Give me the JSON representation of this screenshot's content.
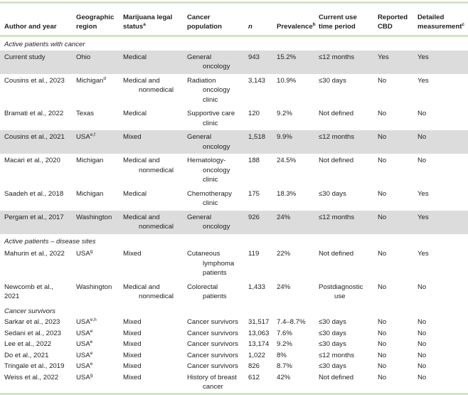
{
  "headers": [
    {
      "text": "Author and year"
    },
    {
      "text": "Geographic region"
    },
    {
      "text": "Marijuana legal status",
      "sup": "a"
    },
    {
      "text": "Cancer population"
    },
    {
      "text": "n",
      "italic": true
    },
    {
      "text": "Prevalence",
      "sup": "b"
    },
    {
      "text": "Current use time period"
    },
    {
      "text": "Reported CBD"
    },
    {
      "text": "Detailed measurement",
      "sup": "c"
    }
  ],
  "groups": [
    {
      "title": "Active patients with cancer",
      "rows": [
        {
          "shaded": true,
          "cells": [
            [
              "Current study"
            ],
            [
              "Ohio"
            ],
            [
              "Medical"
            ],
            [
              "General",
              "oncology"
            ],
            [
              "943"
            ],
            [
              "15.2%"
            ],
            [
              "≤12 months"
            ],
            [
              "Yes"
            ],
            [
              "Yes"
            ]
          ]
        },
        {
          "cells": [
            [
              "Cousins et al., 2023"
            ],
            [
              {
                "t": "Michigan",
                "sup": "d"
              }
            ],
            [
              "Medical and",
              "nonmedical"
            ],
            [
              "Radiation",
              "oncology clinic"
            ],
            [
              "3,143"
            ],
            [
              "10.9%"
            ],
            [
              "≤30 days"
            ],
            [
              "No"
            ],
            [
              "Yes"
            ]
          ]
        },
        {
          "cells": [
            [
              "Bramati et al., 2022"
            ],
            [
              "Texas"
            ],
            [
              "Medical"
            ],
            [
              "Supportive care",
              "clinic"
            ],
            [
              "120"
            ],
            [
              "9.2%"
            ],
            [
              "Not defined"
            ],
            [
              "No"
            ],
            [
              "No"
            ]
          ]
        },
        {
          "shaded": true,
          "cells": [
            [
              "Cousins et al., 2021"
            ],
            [
              {
                "t": "USA",
                "sup": "e,f"
              }
            ],
            [
              "Mixed"
            ],
            [
              "General",
              "oncology"
            ],
            [
              "1,518"
            ],
            [
              "9.9%"
            ],
            [
              "≤12 months"
            ],
            [
              "No"
            ],
            [
              "No"
            ]
          ]
        },
        {
          "cells": [
            [
              "Macari et al., 2020"
            ],
            [
              "Michigan"
            ],
            [
              "Medical and",
              "nonmedical"
            ],
            [
              "Hematology-",
              "oncology",
              "clinic"
            ],
            [
              "188"
            ],
            [
              "24.5%"
            ],
            [
              "Not defined"
            ],
            [
              "No"
            ],
            [
              "No"
            ]
          ]
        },
        {
          "cells": [
            [
              "Saadeh et al., 2018"
            ],
            [
              "Michigan"
            ],
            [
              "Medical"
            ],
            [
              "Chemotherapy",
              "clinic"
            ],
            [
              "175"
            ],
            [
              "18.3%"
            ],
            [
              "≤30 days"
            ],
            [
              "No"
            ],
            [
              "Yes"
            ]
          ]
        },
        {
          "shaded": true,
          "cells": [
            [
              "Pergam et al., 2017"
            ],
            [
              "Washington"
            ],
            [
              "Medical and",
              "nonmedical"
            ],
            [
              "General",
              "oncology"
            ],
            [
              "926"
            ],
            [
              "24%"
            ],
            [
              "≤12 months"
            ],
            [
              "No"
            ],
            [
              "Yes"
            ]
          ]
        }
      ]
    },
    {
      "title": "Active patients – disease sites",
      "rows": [
        {
          "cells": [
            [
              "Mahurin et al., 2022"
            ],
            [
              {
                "t": "USA",
                "sup": "g"
              }
            ],
            [
              "Mixed"
            ],
            [
              "Cutaneous",
              "lymphoma",
              "patients"
            ],
            [
              "119"
            ],
            [
              "22%"
            ],
            [
              "Not defined"
            ],
            [
              "No"
            ],
            [
              "Yes"
            ]
          ]
        },
        {
          "cells": [
            [
              "Newcomb et al., 2021"
            ],
            [
              "Washington"
            ],
            [
              "Medical and",
              "nonmedical"
            ],
            [
              "Colorectal",
              "patients"
            ],
            [
              "1,433"
            ],
            [
              "24%"
            ],
            [
              "Postdiagnostic",
              "use"
            ],
            [
              "No"
            ],
            [
              "No"
            ]
          ]
        }
      ]
    },
    {
      "title": "Cancer survivors",
      "compact": true,
      "rows": [
        {
          "cells": [
            [
              "Sarkar et al., 2023"
            ],
            [
              {
                "t": "USA",
                "sup": "e,h"
              }
            ],
            [
              "Mixed"
            ],
            [
              "Cancer survivors"
            ],
            [
              "31,517"
            ],
            [
              "7.4–8.7%"
            ],
            [
              "≤30 days"
            ],
            [
              "No"
            ],
            [
              "No"
            ]
          ]
        },
        {
          "cells": [
            [
              "Sedani et al., 2023"
            ],
            [
              {
                "t": "USA",
                "sup": "e"
              }
            ],
            [
              "Mixed"
            ],
            [
              "Cancer survivors"
            ],
            [
              "13,063"
            ],
            [
              "7.6%"
            ],
            [
              "≤30 days"
            ],
            [
              "No"
            ],
            [
              "No"
            ]
          ]
        },
        {
          "cells": [
            [
              "Lee et al., 2022"
            ],
            [
              {
                "t": "USA",
                "sup": "e"
              }
            ],
            [
              "Mixed"
            ],
            [
              "Cancer survivors"
            ],
            [
              "13,174"
            ],
            [
              "9.2%"
            ],
            [
              "≤30 days"
            ],
            [
              "No"
            ],
            [
              "No"
            ]
          ]
        },
        {
          "cells": [
            [
              "Do et al., 2021"
            ],
            [
              {
                "t": "USA",
                "sup": "e"
              }
            ],
            [
              "Mixed"
            ],
            [
              "Cancer survivors"
            ],
            [
              "1,022"
            ],
            [
              "8%"
            ],
            [
              "≤12 months"
            ],
            [
              "No"
            ],
            [
              "No"
            ]
          ]
        },
        {
          "cells": [
            [
              "Tringale et al., 2019"
            ],
            [
              {
                "t": "USA",
                "sup": "e"
              }
            ],
            [
              "Mixed"
            ],
            [
              "Cancer survivors"
            ],
            [
              "826"
            ],
            [
              "8.7%"
            ],
            [
              "≤30 days"
            ],
            [
              "No"
            ],
            [
              "No"
            ]
          ]
        },
        {
          "cells": [
            [
              "Weiss et al., 2022"
            ],
            [
              {
                "t": "USA",
                "sup": "g"
              }
            ],
            [
              "Mixed"
            ],
            [
              "History of breast",
              "cancer"
            ],
            [
              "612"
            ],
            [
              "42%"
            ],
            [
              "Not defined"
            ],
            [
              "No"
            ],
            [
              "No"
            ]
          ]
        }
      ]
    }
  ]
}
